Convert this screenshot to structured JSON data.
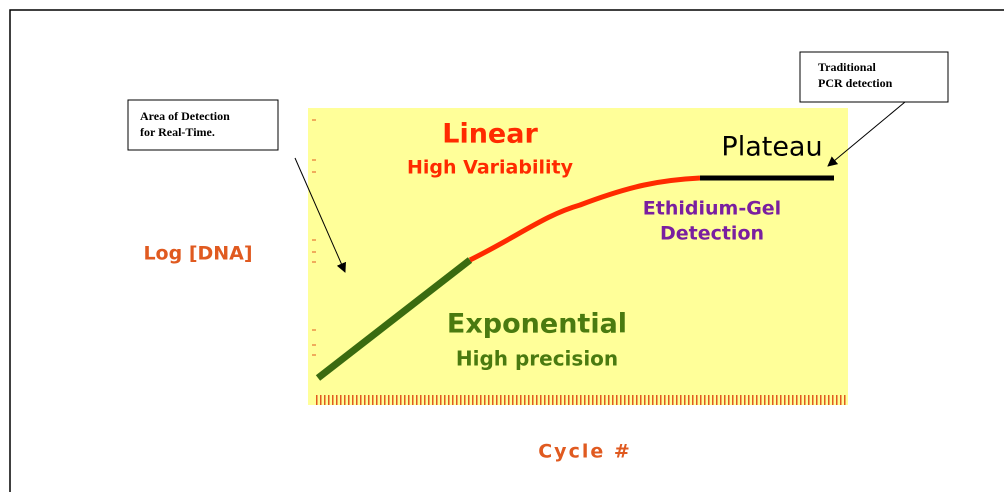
{
  "diagram": {
    "y_axis_label": "Log [DNA]",
    "x_axis_label": "Cycle #",
    "phases": {
      "linear": {
        "title": "Linear",
        "subtitle": "High Variability"
      },
      "plateau": {
        "title": "Plateau",
        "note_1": "Ethidium-Gel",
        "note_2": "Detection"
      },
      "exponential": {
        "title": "Exponential",
        "subtitle": "High precision"
      }
    },
    "callouts": [
      {
        "line_1": "Area of Detection",
        "line_2": "for Real-Time."
      },
      {
        "line_1": "Traditional",
        "line_2": "PCR detection"
      }
    ]
  }
}
